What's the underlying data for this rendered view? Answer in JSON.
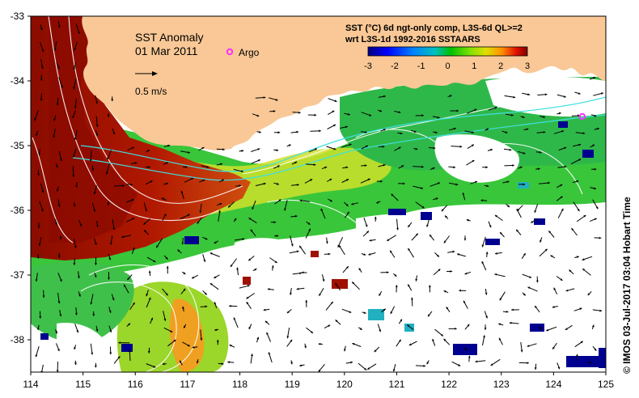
{
  "title": {
    "line1": "SST Anomaly",
    "line2": "01 Mar 2011"
  },
  "legend": {
    "argo_label": "Argo",
    "scale_label": "0.5 m/s"
  },
  "info": {
    "line1": "SST (°C) 6d ngt-only comp, L3S-6d QL>=2",
    "line2": "wrt L3S-1d 1992-2016 SSTAARS"
  },
  "colorbar": {
    "min": -3,
    "max": 3,
    "ticks": [
      "-3",
      "-2",
      "-1",
      "0",
      "1",
      "2",
      "3"
    ],
    "colors": [
      "#000080",
      "#0000ff",
      "#0080ff",
      "#00c0c0",
      "#00c000",
      "#80e000",
      "#e0e000",
      "#ff9000",
      "#e01000",
      "#800000"
    ]
  },
  "axes": {
    "lon_min": 114,
    "lon_max": 125,
    "lat_min": -38.5,
    "lat_max": -33,
    "x_ticks": [
      "114",
      "115",
      "116",
      "117",
      "118",
      "119",
      "120",
      "121",
      "122",
      "123",
      "124",
      "125"
    ],
    "y_ticks": [
      "-33",
      "-34",
      "-35",
      "-36",
      "-37",
      "-38"
    ]
  },
  "argo_float": {
    "lon": 124.55,
    "lat": -34.55
  },
  "credit": "© IMOS 03-Jul-2017 03:04 Hobart Time",
  "colors": {
    "land": "#f9c896",
    "warm_anomaly": "#9a0e00",
    "current_path": "#40e0e0",
    "argo_marker": "#ff30ff"
  }
}
